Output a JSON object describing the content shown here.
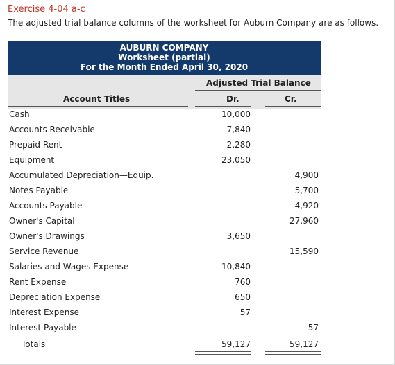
{
  "exercise_title": "Exercise 4-04 a-c",
  "intro": "The adjusted trial balance columns of the worksheet for Auburn Company are as follows.",
  "header": {
    "company": "AUBURN COMPANY",
    "sheet": "Worksheet (partial)",
    "period": "For the Month Ended April 30, 2020"
  },
  "columns": {
    "group": "Adjusted Trial Balance",
    "titles": "Account Titles",
    "dr": "Dr.",
    "cr": "Cr."
  },
  "rows": [
    {
      "name": "Cash",
      "dr": "10,000",
      "cr": ""
    },
    {
      "name": "Accounts Receivable",
      "dr": "7,840",
      "cr": ""
    },
    {
      "name": "Prepaid Rent",
      "dr": "2,280",
      "cr": ""
    },
    {
      "name": "Equipment",
      "dr": "23,050",
      "cr": ""
    },
    {
      "name": "Accumulated Depreciation—Equip.",
      "dr": "",
      "cr": "4,900"
    },
    {
      "name": "Notes Payable",
      "dr": "",
      "cr": "5,700"
    },
    {
      "name": "Accounts Payable",
      "dr": "",
      "cr": "4,920"
    },
    {
      "name": "Owner's Capital",
      "dr": "",
      "cr": "27,960"
    },
    {
      "name": "Owner's Drawings",
      "dr": "3,650",
      "cr": ""
    },
    {
      "name": "Service Revenue",
      "dr": "",
      "cr": "15,590"
    },
    {
      "name": "Salaries and Wages Expense",
      "dr": "10,840",
      "cr": ""
    },
    {
      "name": "Rent Expense",
      "dr": "760",
      "cr": ""
    },
    {
      "name": "Depreciation Expense",
      "dr": "650",
      "cr": ""
    },
    {
      "name": "Interest Expense",
      "dr": "57",
      "cr": ""
    },
    {
      "name": "Interest Payable",
      "dr": "",
      "cr": "57"
    }
  ],
  "totals": {
    "name": "Totals",
    "dr": "59,127",
    "cr": "59,127"
  }
}
